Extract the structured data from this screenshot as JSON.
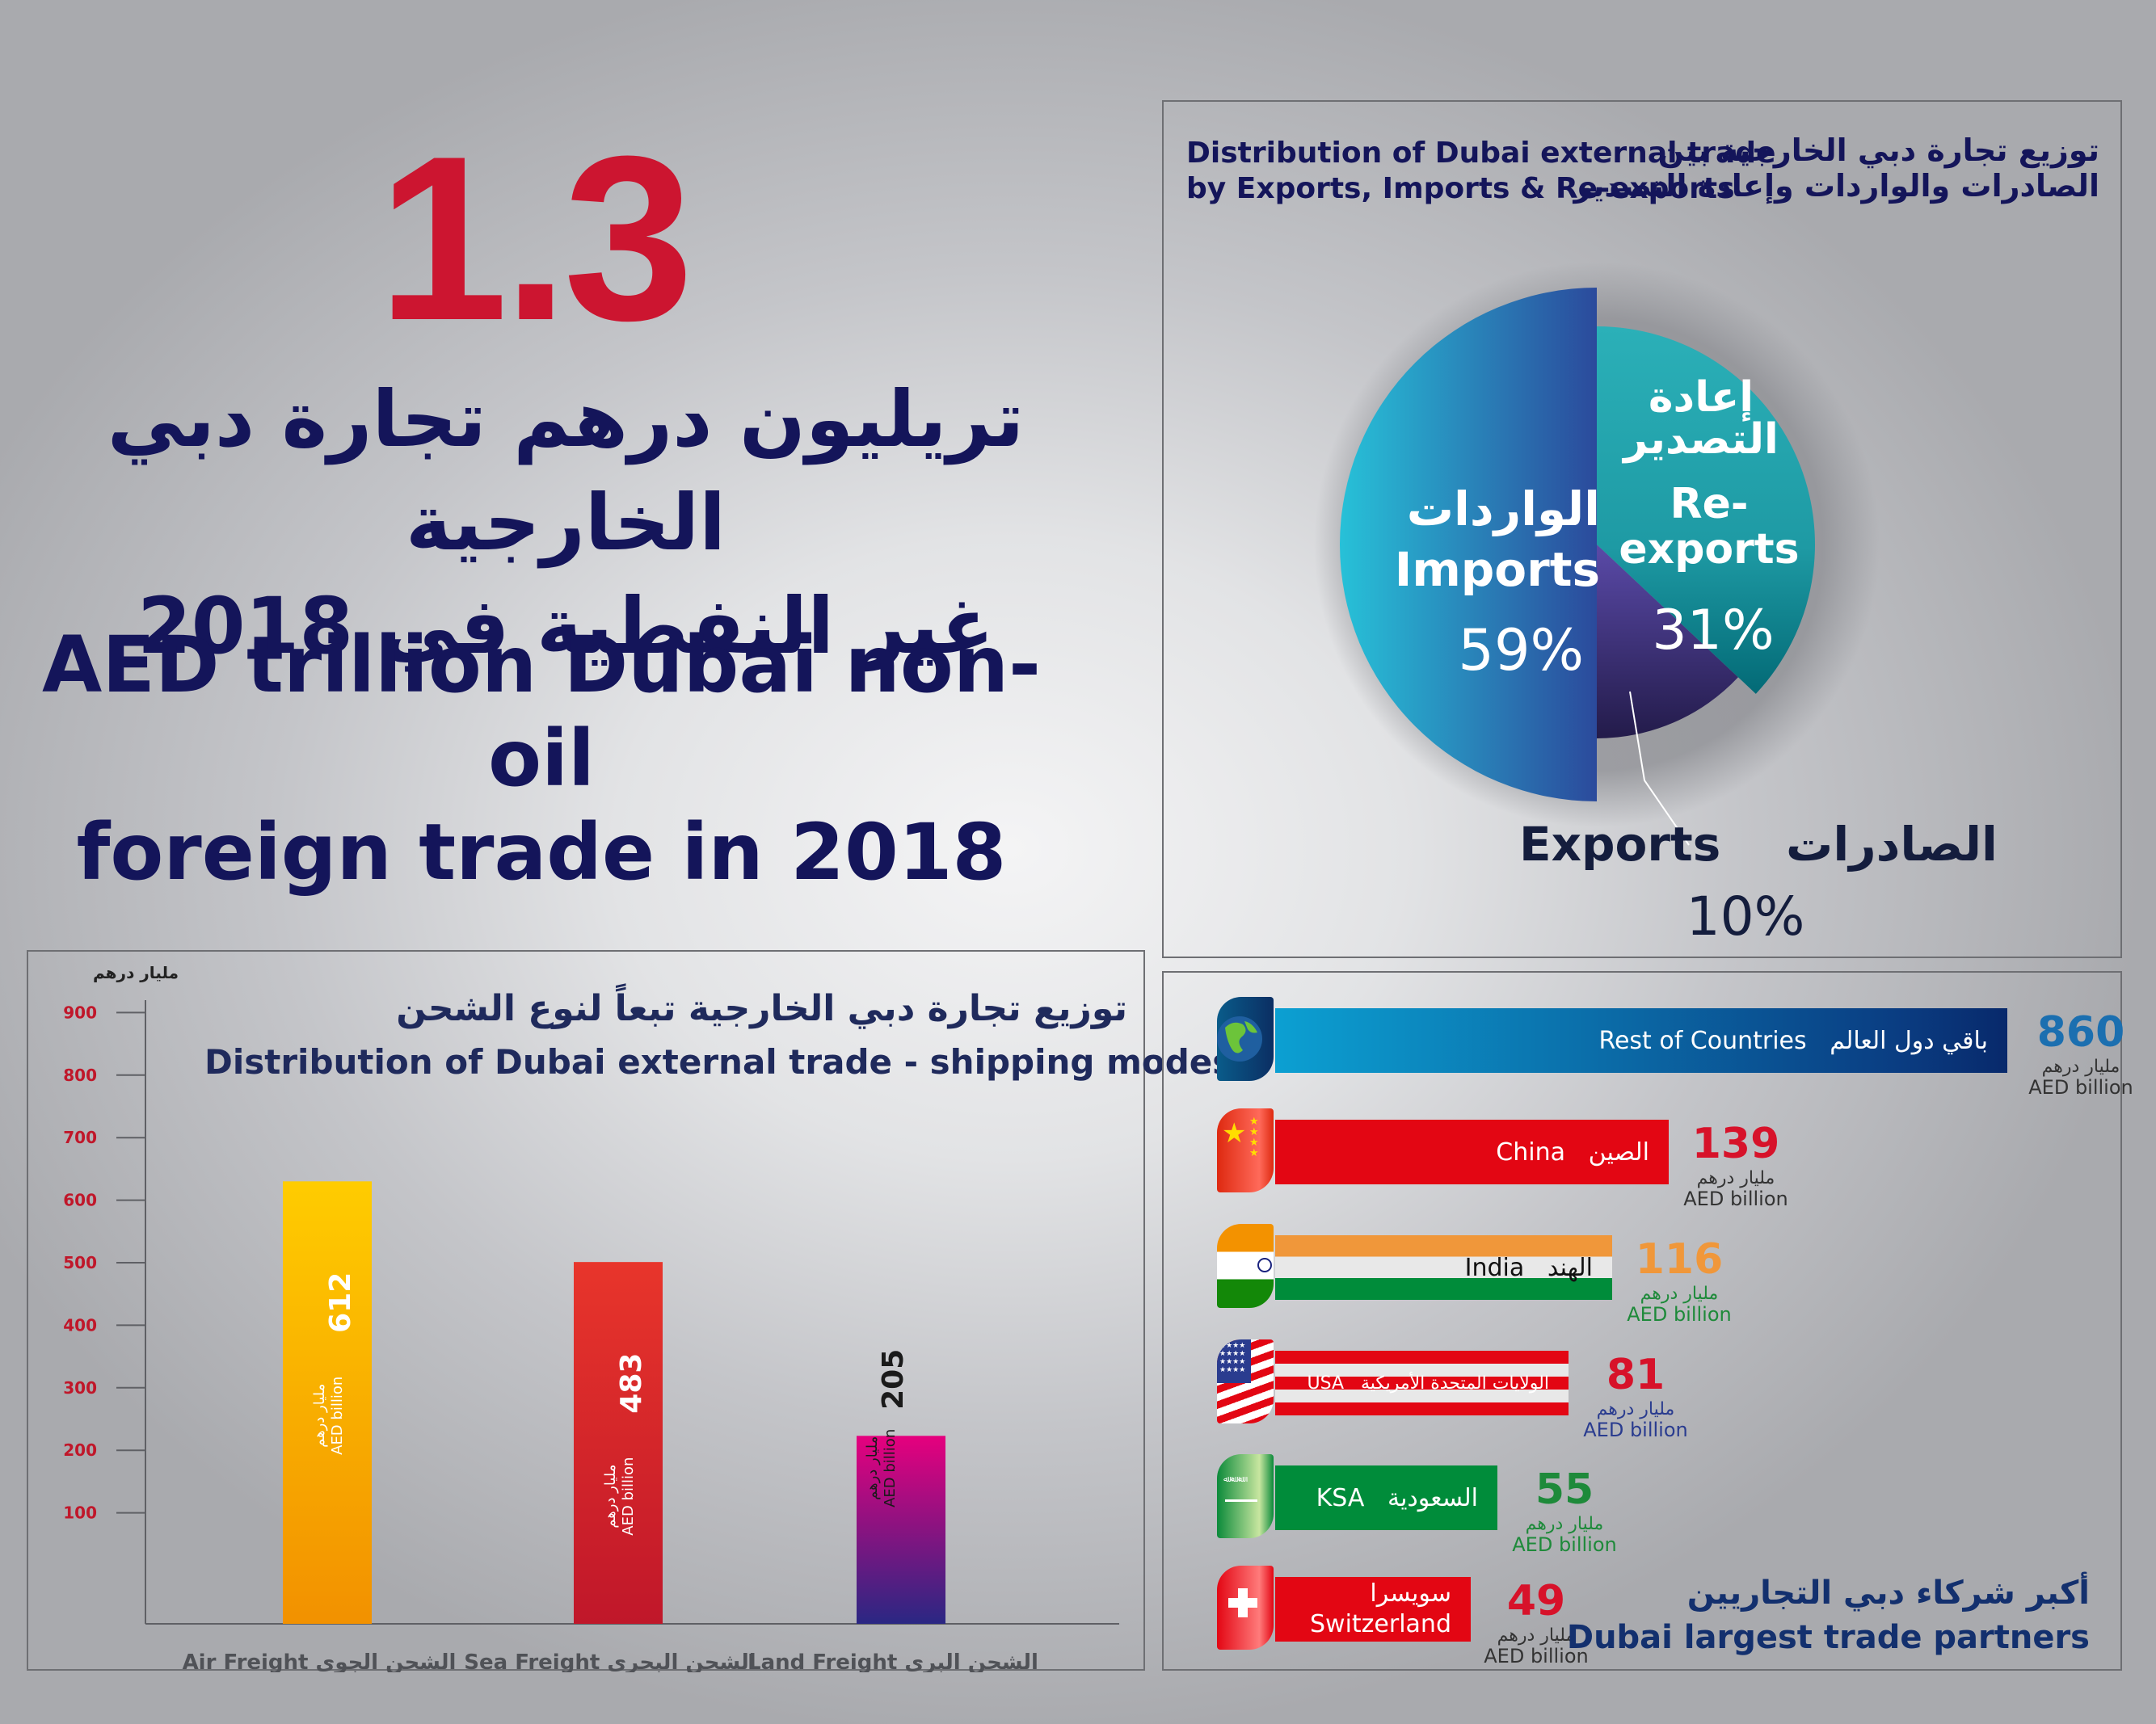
{
  "headline": {
    "number": "1.3",
    "arabic_line1": "تريليون درهم تجارة دبي الخارجية",
    "arabic_line2": "غير النفطية في 2018",
    "english_line1": "AED trillion Dubai non-oil",
    "english_line2": "foreign trade in 2018"
  },
  "colors": {
    "accent_red": "#cc1530",
    "navy": "#14155a"
  },
  "pie_panel": {
    "title_en_line1": "Distribution of Dubai external trade",
    "title_en_line2": "by Exports, Imports & Re-exports",
    "title_ar_line1": "توزيع تجارة دبي الخارجية بين",
    "title_ar_line2": "الصادرات والواردات وإعادة التصدير"
  },
  "bar_panel": {
    "title_ar": "توزيع تجارة دبي الخارجية تبعاً لنوع الشحن",
    "title_en": "Distribution of Dubai external trade - shipping modes",
    "unit_ar": "مليار درهم"
  },
  "partners_panel": {
    "title_ar": "أكبر شركاء دبي التجاريين",
    "title_en": "Dubai largest trade partners",
    "unit_ar": "مليار درهم",
    "unit_en": "AED billion",
    "partners": [
      {
        "name_en": "Rest of Countries",
        "name_ar": "باقي دول العالم",
        "value": 860,
        "flag_icon": "globe-icon",
        "value_color": "#1b6fb0"
      },
      {
        "name_en": "China",
        "name_ar": "الصين",
        "value": 139,
        "flag_icon": "china-flag-icon",
        "value_color": "#d7122a"
      },
      {
        "name_en": "India",
        "name_ar": "الهند",
        "value": 116,
        "flag_icon": "india-flag-icon",
        "value_color": "#f0973a"
      },
      {
        "name_en": "USA",
        "name_ar": "الولايات المتحدة الأمريكية",
        "value": 81,
        "flag_icon": "usa-flag-icon",
        "value_color": "#d7122a"
      },
      {
        "name_en": "KSA",
        "name_ar": "السعودية",
        "value": 55,
        "flag_icon": "saudi-flag-icon",
        "value_color": "#1e8a3a"
      },
      {
        "name_en": "Switzerland",
        "name_ar": "سويسرا",
        "value": 49,
        "flag_icon": "swiss-flag-icon",
        "value_color": "#d7122a"
      }
    ]
  },
  "chart_data": [
    {
      "type": "pie",
      "title": "Distribution of Dubai external trade by Exports, Imports & Re-exports",
      "title_ar": "توزيع تجارة دبي الخارجية بين الصادرات والواردات وإعادة التصدير",
      "slices": [
        {
          "label": "Imports",
          "label_ar": "الواردات",
          "value": 59,
          "display": "59%"
        },
        {
          "label": "Re-exports",
          "label_ar": "إعادة التصدير",
          "value": 31,
          "display": "31%"
        },
        {
          "label": "Exports",
          "label_ar": "الصادرات",
          "value": 10,
          "display": "10%"
        }
      ]
    },
    {
      "type": "bar",
      "title": "Distribution of Dubai external trade - shipping modes",
      "title_ar": "توزيع تجارة دبي الخارجية تبعاً لنوع الشحن",
      "categories": [
        "Air Freight",
        "Sea Freight",
        "Land Freight"
      ],
      "categories_ar": [
        "الشحن الجوي",
        "الشحن البحري",
        "الشحن البري"
      ],
      "values": [
        612,
        483,
        205
      ],
      "value_unit_ar": "مليار درهم",
      "value_unit_en": "AED billion",
      "ylabel": "مليار درهم",
      "xlabel": "",
      "yticks": [
        100,
        200,
        300,
        400,
        500,
        600,
        700,
        800,
        900
      ],
      "ylim": [
        0,
        900
      ],
      "grid": false,
      "bar_colors": [
        [
          "#ffcc00",
          "#f29100"
        ],
        [
          "#e8352b",
          "#c0172a"
        ],
        [
          "#e6007e",
          "#2a2783"
        ]
      ]
    },
    {
      "type": "bar",
      "orientation": "horizontal",
      "title": "Dubai largest trade partners",
      "title_ar": "أكبر شركاء دبي التجاريين",
      "categories": [
        "Rest of Countries",
        "China",
        "India",
        "USA",
        "KSA",
        "Switzerland"
      ],
      "values": [
        860,
        139,
        116,
        81,
        55,
        49
      ],
      "unit": "AED billion"
    }
  ]
}
